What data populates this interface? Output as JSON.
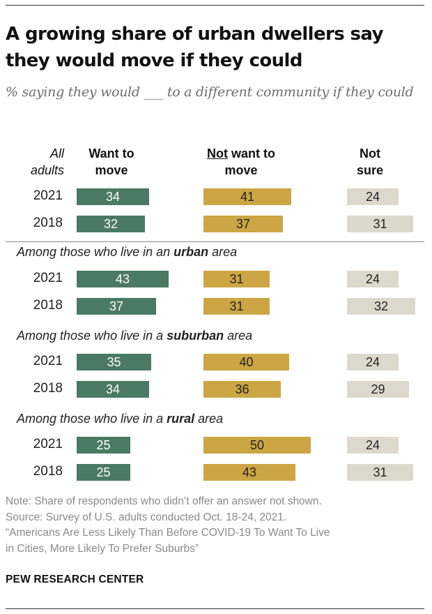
{
  "title": "A growing share of urban dwellers say they would move if they could",
  "subtitle": "% saying they would ___ to a different community if they could",
  "headers": {
    "all_adults": "All adults",
    "want": "Want to move",
    "not_want_prefix": "Not",
    "not_want_rest": " want to move",
    "not_sure": "Not sure"
  },
  "colors": {
    "want": "#4a7a64",
    "not_want": "#cca544",
    "not_sure": "#dcd9cc",
    "want_text": "#ffffff",
    "dark_text": "#222222",
    "divider": "#8a8a8a"
  },
  "chart_data": {
    "type": "bar",
    "orientation": "horizontal",
    "title": "A growing share of urban dwellers say they would move if they could",
    "series_names": [
      "Want to move",
      "Not want to move",
      "Not sure"
    ],
    "xlim": [
      0,
      100
    ],
    "groups": [
      {
        "label": "",
        "rows": [
          {
            "year": "2021",
            "values": [
              34,
              41,
              24
            ]
          },
          {
            "year": "2018",
            "values": [
              32,
              37,
              31
            ]
          }
        ]
      },
      {
        "label": {
          "pre": "Among those who live in an ",
          "bold": "urban",
          "post": " area"
        },
        "rows": [
          {
            "year": "2021",
            "values": [
              43,
              31,
              24
            ]
          },
          {
            "year": "2018",
            "values": [
              37,
              31,
              32
            ]
          }
        ]
      },
      {
        "label": {
          "pre": "Among those who live in a ",
          "bold": "suburban",
          "post": " area"
        },
        "rows": [
          {
            "year": "2021",
            "values": [
              35,
              40,
              24
            ]
          },
          {
            "year": "2018",
            "values": [
              34,
              36,
              29
            ]
          }
        ]
      },
      {
        "label": {
          "pre": "Among those who live in a ",
          "bold": "rural",
          "post": " area"
        },
        "rows": [
          {
            "year": "2021",
            "values": [
              25,
              50,
              24
            ]
          },
          {
            "year": "2018",
            "values": [
              25,
              43,
              31
            ]
          }
        ]
      }
    ]
  },
  "notes": {
    "note": "Note: Share of respondents who didn’t offer an answer not shown.",
    "source": "Source: Survey of U.S. adults conducted Oct. 18-24, 2021.",
    "report_line1": "“Americans Are Less Likely Than Before COVID-19 To Want To Live",
    "report_line2": "in Cities, More Likely To Prefer Suburbs”"
  },
  "credit": "PEW RESEARCH CENTER"
}
